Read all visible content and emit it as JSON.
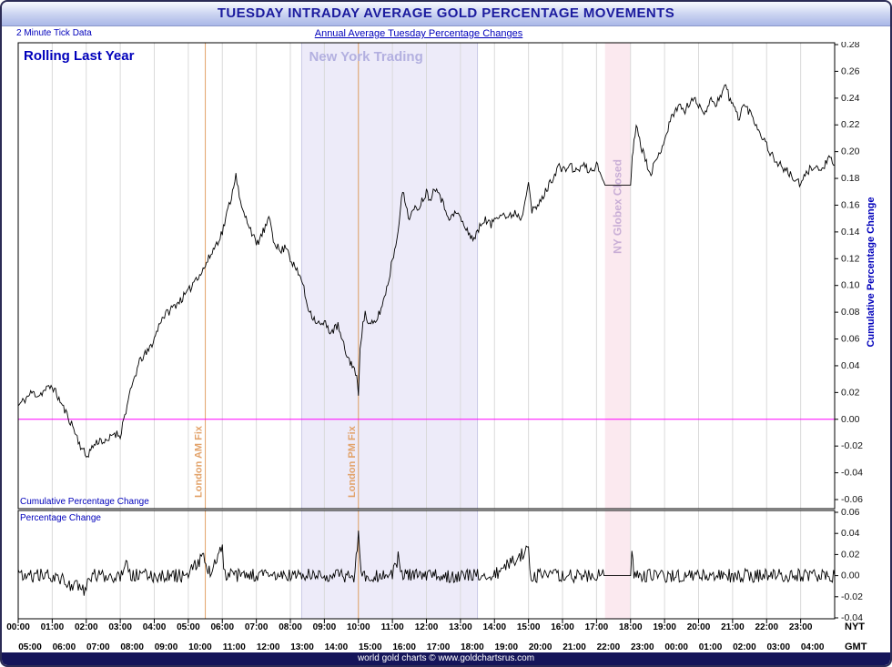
{
  "window": {
    "title": "TUESDAY INTRADAY AVERAGE GOLD PERCENTAGE MOVEMENTS",
    "subtitle_left": "2 Minute Tick Data",
    "subtitle_center": "Annual Average Tuesday Percentage Changes",
    "footer": "world gold charts © www.goldchartsrus.com"
  },
  "labels": {
    "rolling": "Rolling Last Year",
    "ny_trading": "New York Trading",
    "london_am": "London AM Fix",
    "london_pm": "London PM Fix",
    "globex": "NY Globex Closed",
    "right_axis": "Cumulative Percentage Change",
    "cumulative_panel": "Cumulative Percentage Change",
    "percentage_panel": "Percentage Change",
    "nyt": "NYT",
    "gmt": "GMT"
  },
  "colors": {
    "accent_blue": "#0000bb",
    "title_navy": "#1b1b9e",
    "grid": "#dadada",
    "ny_band": "#edebf9",
    "ny_band_edge": "#c9c9e6",
    "ny_text": "#b3b0e0",
    "globex_band": "#fbe9ef",
    "globex_text": "#c9aed6",
    "fix_line": "#e2a269",
    "zero_line": "#ff00ff",
    "series": "#000000",
    "footer_bg": "#15155a"
  },
  "chart_data": {
    "type": "line",
    "title": "TUESDAY INTRADAY AVERAGE GOLD PERCENTAGE MOVEMENTS",
    "noise_seed": 11,
    "x_axis": {
      "hours_range": [
        0,
        24
      ],
      "nyt_ticks": [
        "00:00",
        "01:00",
        "02:00",
        "03:00",
        "04:00",
        "05:00",
        "06:00",
        "07:00",
        "08:00",
        "09:00",
        "10:00",
        "11:00",
        "12:00",
        "13:00",
        "14:00",
        "15:00",
        "16:00",
        "17:00",
        "18:00",
        "19:00",
        "20:00",
        "21:00",
        "22:00",
        "23:00"
      ],
      "gmt_ticks": [
        "05:00",
        "06:00",
        "07:00",
        "08:00",
        "09:00",
        "10:00",
        "11:00",
        "12:00",
        "13:00",
        "14:00",
        "15:00",
        "16:00",
        "17:00",
        "18:00",
        "19:00",
        "20:00",
        "21:00",
        "22:00",
        "23:00",
        "00:00",
        "01:00",
        "02:00",
        "03:00",
        "04:00"
      ]
    },
    "annotations": {
      "ny_trading_band_hours": [
        8.333,
        13.5
      ],
      "globex_closed_band_hours": [
        17.25,
        18.0
      ],
      "london_am_fix_hour": 5.5,
      "london_pm_fix_hour": 10.0,
      "zero_line_value": 0
    },
    "panels": [
      {
        "name": "cumulative-percentage-change",
        "label": "Cumulative Percentage Change",
        "ylim": [
          -0.06,
          0.28
        ],
        "yticks": [
          "0.28",
          "0.26",
          "0.24",
          "0.22",
          "0.20",
          "0.18",
          "0.16",
          "0.14",
          "0.12",
          "0.10",
          "0.08",
          "0.06",
          "0.04",
          "0.02",
          "0.00",
          "-0.02",
          "-0.04",
          "-0.06"
        ],
        "noise_amp": 0.0032,
        "quiet_range": [
          17.2,
          18.0
        ],
        "keypoints": {
          "t": [
            0,
            0.2,
            0.4,
            0.6,
            0.8,
            1.0,
            1.2,
            1.4,
            1.6,
            1.8,
            2.0,
            2.2,
            2.4,
            2.6,
            2.8,
            3.0,
            3.1,
            3.2,
            3.4,
            3.6,
            3.8,
            4.0,
            4.2,
            4.4,
            4.6,
            4.8,
            5.0,
            5.2,
            5.4,
            5.5,
            5.7,
            5.9,
            6.0,
            6.1,
            6.3,
            6.4,
            6.5,
            6.6,
            6.8,
            7.0,
            7.2,
            7.4,
            7.5,
            7.7,
            7.9,
            8.0,
            8.2,
            8.33,
            8.5,
            8.7,
            8.9,
            9.0,
            9.2,
            9.4,
            9.5,
            9.7,
            9.85,
            9.95,
            10.0,
            10.05,
            10.1,
            10.2,
            10.3,
            10.5,
            10.7,
            10.9,
            11.0,
            11.1,
            11.2,
            11.3,
            11.4,
            11.5,
            11.6,
            11.8,
            12.0,
            12.1,
            12.3,
            12.5,
            12.7,
            12.9,
            13.0,
            13.2,
            13.4,
            13.5,
            13.7,
            13.9,
            14.0,
            14.2,
            14.4,
            14.6,
            14.8,
            15.0,
            15.1,
            15.3,
            15.5,
            15.7,
            15.9,
            16.0,
            16.2,
            16.4,
            16.6,
            16.8,
            17.0,
            17.1,
            17.25,
            18.0,
            18.05,
            18.1,
            18.2,
            18.3,
            18.5,
            18.6,
            18.8,
            19.0,
            19.2,
            19.4,
            19.6,
            19.8,
            20.0,
            20.2,
            20.4,
            20.5,
            20.7,
            20.8,
            20.9,
            21.0,
            21.2,
            21.3,
            21.5,
            21.7,
            21.9,
            22.0,
            22.2,
            22.4,
            22.6,
            22.8,
            23.0,
            23.2,
            23.4,
            23.6,
            23.8,
            24.0
          ],
          "v": [
            0.01,
            0.015,
            0.02,
            0.018,
            0.022,
            0.025,
            0.015,
            0.005,
            -0.005,
            -0.018,
            -0.028,
            -0.02,
            -0.015,
            -0.018,
            -0.01,
            -0.012,
            0.0,
            0.01,
            0.03,
            0.045,
            0.05,
            0.06,
            0.075,
            0.08,
            0.085,
            0.09,
            0.095,
            0.105,
            0.11,
            0.115,
            0.125,
            0.135,
            0.14,
            0.15,
            0.17,
            0.185,
            0.165,
            0.155,
            0.145,
            0.13,
            0.14,
            0.15,
            0.135,
            0.125,
            0.13,
            0.12,
            0.11,
            0.105,
            0.085,
            0.075,
            0.07,
            0.072,
            0.065,
            0.07,
            0.06,
            0.045,
            0.04,
            0.03,
            0.02,
            0.055,
            0.065,
            0.08,
            0.07,
            0.072,
            0.085,
            0.105,
            0.12,
            0.13,
            0.15,
            0.17,
            0.16,
            0.15,
            0.155,
            0.16,
            0.17,
            0.165,
            0.175,
            0.16,
            0.15,
            0.155,
            0.15,
            0.14,
            0.135,
            0.14,
            0.15,
            0.145,
            0.15,
            0.155,
            0.15,
            0.155,
            0.15,
            0.18,
            0.155,
            0.16,
            0.17,
            0.18,
            0.19,
            0.185,
            0.19,
            0.185,
            0.19,
            0.185,
            0.19,
            0.185,
            0.175,
            0.175,
            0.195,
            0.21,
            0.22,
            0.205,
            0.19,
            0.185,
            0.195,
            0.21,
            0.225,
            0.235,
            0.23,
            0.24,
            0.235,
            0.23,
            0.24,
            0.235,
            0.245,
            0.25,
            0.24,
            0.235,
            0.225,
            0.235,
            0.23,
            0.22,
            0.21,
            0.205,
            0.195,
            0.19,
            0.185,
            0.18,
            0.175,
            0.185,
            0.19,
            0.185,
            0.195,
            0.19
          ]
        }
      },
      {
        "name": "percentage-change",
        "label": "Percentage Change",
        "ylim": [
          -0.04,
          0.06
        ],
        "yticks": [
          "0.06",
          "0.04",
          "0.02",
          "0.00",
          "-0.02",
          "-0.04"
        ],
        "noise_amp": 0.0065,
        "quiet_range": [
          17.2,
          18.0
        ],
        "keypoints": {
          "t": [
            0,
            1,
            2,
            2.08,
            3,
            3.2,
            3.28,
            4,
            5,
            5.45,
            5.55,
            6,
            6.08,
            7,
            8,
            9,
            9.9,
            10,
            10.08,
            10.5,
            11,
            11.2,
            11.28,
            12,
            13,
            14,
            15,
            15.08,
            16,
            17,
            17.25,
            18,
            18.04,
            18.1,
            19,
            20,
            21,
            22,
            23,
            24
          ],
          "v": [
            0,
            0,
            -0.015,
            0,
            0,
            0.018,
            0,
            0,
            0,
            0.02,
            0,
            0.025,
            0,
            0,
            0,
            0,
            0,
            0.045,
            0,
            0,
            0,
            0.02,
            0,
            0,
            0,
            0,
            0.025,
            0,
            0,
            0,
            0,
            0,
            0.02,
            0,
            0,
            0,
            0,
            0,
            0,
            0
          ]
        }
      }
    ]
  }
}
